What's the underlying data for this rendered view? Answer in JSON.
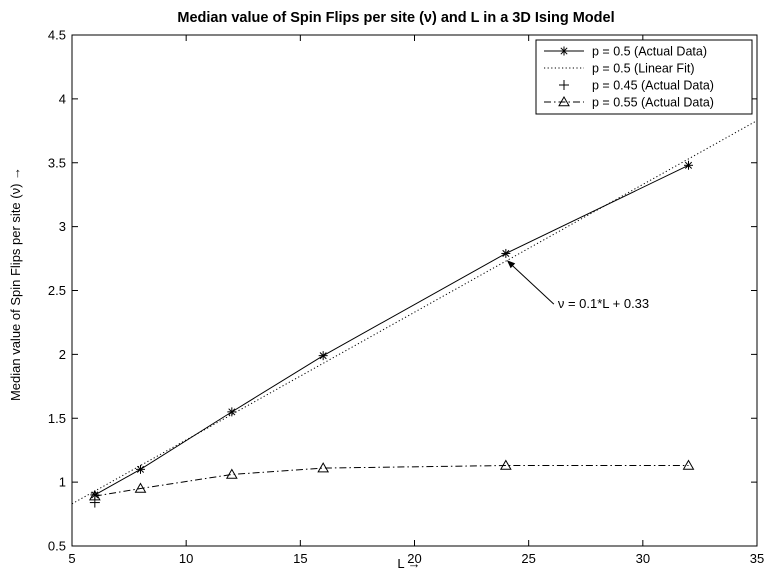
{
  "chart_data": {
    "type": "line",
    "title": "Median value of Spin Flips per site (ν) and L in a 3D Ising Model",
    "xlabel": "L →",
    "ylabel": "Median value of Spin Flips per site (ν) →",
    "xlim": [
      5,
      35
    ],
    "ylim": [
      0.5,
      4.5
    ],
    "xticks": [
      "5",
      "10",
      "15",
      "20",
      "25",
      "30",
      "35"
    ],
    "yticks": [
      "0.5",
      "1",
      "1.5",
      "2",
      "2.5",
      "3",
      "3.5",
      "4",
      "4.5"
    ],
    "grid": false,
    "legend_position": "top-right",
    "series": [
      {
        "name": "p = 0.5 (Actual Data)",
        "marker": "asterisk",
        "line": "solid",
        "x": [
          6,
          8,
          12,
          16,
          24,
          32
        ],
        "y": [
          0.9,
          1.1,
          1.55,
          1.99,
          2.79,
          3.48
        ]
      },
      {
        "name": "p = 0.5 (Linear Fit)",
        "marker": "none",
        "line": "dotted",
        "x": [
          5,
          35
        ],
        "y": [
          0.83,
          3.83
        ]
      },
      {
        "name": "p = 0.45 (Actual Data)",
        "marker": "plus",
        "line": "none",
        "x": [
          6
        ],
        "y": [
          0.84
        ]
      },
      {
        "name": "p = 0.55 (Actual Data)",
        "marker": "triangle",
        "line": "dashdot",
        "x": [
          6,
          8,
          12,
          16,
          24,
          32
        ],
        "y": [
          0.89,
          0.95,
          1.06,
          1.11,
          1.13,
          1.13
        ]
      }
    ],
    "annotation": {
      "text": "ν = 0.1*L + 0.33",
      "point_x": 24,
      "point_y": 2.73
    }
  }
}
